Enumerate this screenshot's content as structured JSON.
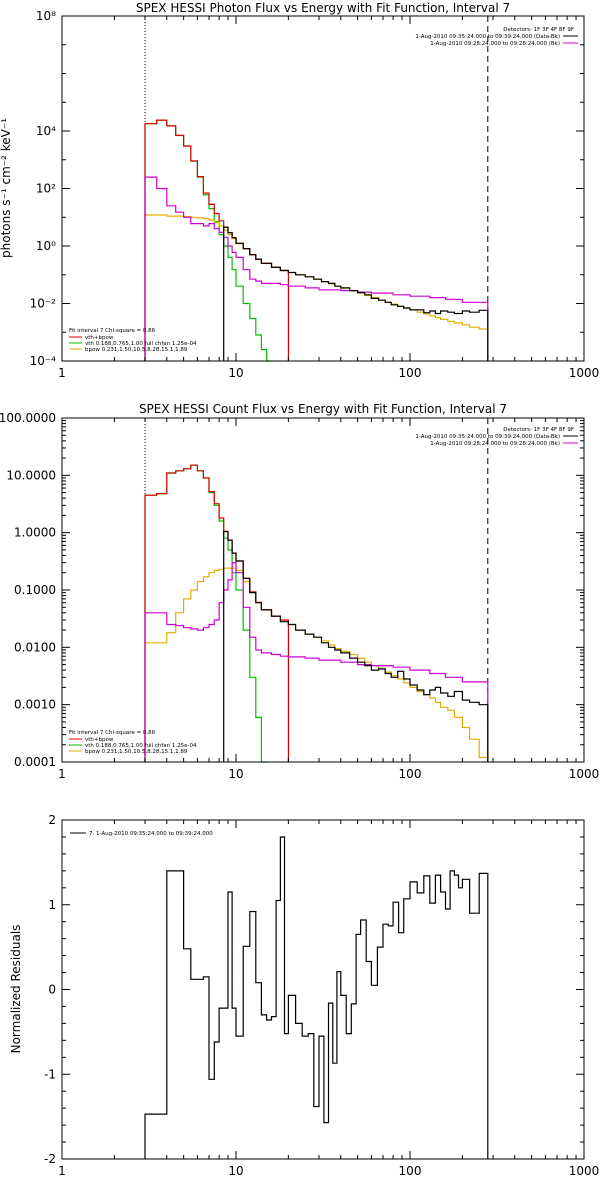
{
  "colors": {
    "total": "#000000",
    "sum": "#e00000",
    "vth": "#00c000",
    "bpow": "#e0b000",
    "background": "#d000d0"
  },
  "chart_data": [
    {
      "type": "line",
      "title": "SPEX HESSI Photon Flux vs Energy with Fit Function, Interval 7",
      "xlabel": "",
      "ylabel": "photons s⁻¹ cm⁻² keV⁻¹",
      "xscale": "log",
      "yscale": "log",
      "xlim": [
        1,
        1000
      ],
      "ylim": [
        0.0001,
        100000000
      ],
      "xticks": [
        1,
        10,
        100,
        1000
      ],
      "xtick_labels": [
        "1",
        "10",
        "100",
        "1000"
      ],
      "yticks": [
        0.0001,
        0.01,
        1,
        100,
        10000,
        100000000
      ],
      "ytick_labels": [
        "10⁻⁴",
        "10⁻²",
        "10⁰",
        "10²",
        "10⁴",
        "10⁸"
      ],
      "vlines": [
        {
          "x": 3,
          "style": "dotted"
        },
        {
          "x": 280,
          "style": "dashed"
        }
      ],
      "legend_top": [
        "Detectors: 1F 3F 4F 8F 9F",
        "1-Aug-2010 09:35:24.000 to 09:39:24.000 (Data-Bk)",
        "1-Aug-2010 09:28:24.000 to 09:28:24.000 (Bk)"
      ],
      "legend_bottom": [
        "Fit interval 7   Chi-square = 0.86",
        "vth+bpow",
        "vth 0.188,0.765,1.00  full chfan 1.25e-04",
        "bpow 0.231,1.50,10.5,8.28,15.1,1.89"
      ],
      "series": [
        {
          "role": "vth",
          "edges": [
            3,
            3.5,
            4,
            4.5,
            5,
            5.5,
            6,
            6.5,
            7,
            7.5,
            8,
            8.5,
            9,
            9.5,
            10,
            11,
            12,
            13,
            14,
            15,
            16
          ],
          "values": [
            18000,
            24000,
            15000,
            7000,
            3000,
            900,
            250,
            60,
            20,
            7,
            2.5,
            1,
            0.4,
            0.15,
            0.04,
            0.01,
            0.003,
            0.0008,
            0.00025,
            0.0001
          ]
        },
        {
          "role": "bpow",
          "edges": [
            3,
            3.5,
            4,
            4.5,
            5,
            5.5,
            6,
            6.5,
            7,
            7.5,
            8,
            8.5,
            9,
            9.5,
            10,
            11,
            12,
            13,
            14,
            16,
            18,
            20,
            22,
            25,
            28,
            31,
            34,
            37,
            40,
            45,
            50,
            55,
            60,
            66,
            72,
            78,
            85,
            92,
            100,
            110,
            120,
            130,
            140,
            150,
            165,
            180,
            200,
            220,
            250,
            280
          ],
          "values": [
            12,
            12,
            11,
            11,
            10.5,
            10,
            9.5,
            9,
            8,
            6.5,
            5,
            3.5,
            2.5,
            1.8,
            1.2,
            0.8,
            0.5,
            0.35,
            0.25,
            0.18,
            0.14,
            0.12,
            0.1,
            0.085,
            0.07,
            0.058,
            0.048,
            0.04,
            0.034,
            0.028,
            0.023,
            0.019,
            0.016,
            0.013,
            0.011,
            0.0095,
            0.008,
            0.007,
            0.006,
            0.005,
            0.0043,
            0.0037,
            0.0032,
            0.0028,
            0.0024,
            0.0021,
            0.0018,
            0.0015,
            0.0013
          ]
        },
        {
          "role": "sum",
          "edges": [
            3,
            3.5,
            4,
            4.5,
            5,
            5.5,
            6,
            6.5,
            7,
            7.5,
            8,
            8.5,
            9,
            9.5,
            10,
            11,
            12,
            13,
            14,
            16,
            18,
            20
          ],
          "values": [
            18012,
            24012,
            15011,
            7011,
            3010,
            910,
            260,
            69,
            28,
            13.5,
            7.5,
            4.5,
            2.9,
            1.95,
            1.24,
            0.81,
            0.5,
            0.35,
            0.25,
            0.18,
            0.14
          ]
        },
        {
          "role": "background",
          "edges": [
            3,
            3.5,
            4,
            4.5,
            5,
            5.5,
            6,
            6.5,
            7,
            7.5,
            8,
            8.5,
            9,
            9.5,
            10,
            11,
            12,
            13,
            14,
            16,
            18,
            20,
            25,
            30,
            40,
            50,
            60,
            80,
            100,
            130,
            160,
            200,
            280
          ],
          "values": [
            250,
            100,
            25,
            15,
            10,
            6,
            6,
            5,
            6,
            4,
            3,
            2,
            1,
            0.6,
            0.4,
            0.15,
            0.07,
            0.06,
            0.05,
            0.05,
            0.045,
            0.04,
            0.035,
            0.03,
            0.028,
            0.025,
            0.023,
            0.02,
            0.018,
            0.016,
            0.014,
            0.011
          ]
        },
        {
          "role": "total",
          "edges": [
            8.5,
            9,
            9.5,
            10,
            11,
            12,
            13,
            14,
            16,
            18,
            20,
            22,
            25,
            28,
            31,
            34,
            37,
            40,
            45,
            50,
            55,
            60,
            66,
            72,
            78,
            85,
            92,
            100,
            110,
            120,
            130,
            140,
            150,
            165,
            180,
            200,
            220,
            250,
            280
          ],
          "values": [
            4.5,
            2.9,
            1.95,
            1.24,
            0.81,
            0.5,
            0.35,
            0.25,
            0.18,
            0.14,
            0.12,
            0.1,
            0.085,
            0.07,
            0.058,
            0.05,
            0.04,
            0.035,
            0.028,
            0.024,
            0.02,
            0.015,
            0.013,
            0.011,
            0.009,
            0.008,
            0.007,
            0.006,
            0.006,
            0.0048,
            0.0055,
            0.0045,
            0.0055,
            0.005,
            0.0045,
            0.0055,
            0.005,
            0.0058
          ]
        }
      ]
    },
    {
      "type": "line",
      "title": "SPEX HESSI Count Flux vs Energy with Fit Function, Interval 7",
      "xlabel": "",
      "ylabel": "",
      "xscale": "log",
      "yscale": "log",
      "xlim": [
        1,
        1000
      ],
      "ylim": [
        0.0001,
        100
      ],
      "xticks": [
        1,
        10,
        100,
        1000
      ],
      "xtick_labels": [
        "1",
        "10",
        "100",
        "1000"
      ],
      "yticks": [
        0.0001,
        0.001,
        0.01,
        0.1,
        1,
        10,
        100
      ],
      "ytick_labels": [
        "0.0001",
        "0.0010",
        "0.0100",
        "0.1000",
        "1.0000",
        "10.0000",
        "100.0000"
      ],
      "vlines": [
        {
          "x": 3,
          "style": "dotted"
        },
        {
          "x": 280,
          "style": "dashed"
        }
      ],
      "legend_top": [
        "Detectors: 1F 3F 4F 8F 9F",
        "1-Aug-2010 09:35:24.000 to 09:39:24.000 (Data-Bk)",
        "1-Aug-2010 09:28:24.000 to 09:28:24.000 (Bk)"
      ],
      "legend_bottom": [
        "Fit interval 7   Chi-square = 0.86",
        "vth+bpow",
        "vth 0.188,0.765,1.00  full chfan 1.25e-04",
        "bpow 0.231,1.50,10.5,8.28,15.1,1.89"
      ],
      "series": [
        {
          "role": "vth",
          "edges": [
            3,
            3.5,
            4,
            4.5,
            5,
            5.5,
            6,
            6.5,
            7,
            7.5,
            8,
            8.5,
            9,
            9.5,
            10,
            11,
            12,
            13,
            14,
            15
          ],
          "values": [
            4.5,
            4.8,
            11,
            12,
            13,
            15,
            12,
            9,
            5,
            3,
            1.6,
            0.8,
            0.5,
            0.2,
            0.1,
            0.02,
            0.003,
            0.0006,
            0.0001
          ]
        },
        {
          "role": "bpow",
          "edges": [
            3,
            3.5,
            4,
            4.5,
            5,
            5.5,
            6,
            6.5,
            7,
            7.5,
            8,
            8.5,
            9,
            9.5,
            10,
            11,
            12,
            13,
            14,
            16,
            18,
            20,
            22,
            25,
            28,
            31,
            34,
            37,
            40,
            45,
            50,
            55,
            60,
            66,
            72,
            78,
            85,
            92,
            100,
            110,
            120,
            130,
            140,
            150,
            165,
            180,
            200,
            220,
            250,
            280
          ],
          "values": [
            0.012,
            0.012,
            0.018,
            0.04,
            0.07,
            0.1,
            0.14,
            0.17,
            0.2,
            0.22,
            0.23,
            0.24,
            0.24,
            0.24,
            0.22,
            0.14,
            0.09,
            0.06,
            0.045,
            0.035,
            0.03,
            0.025,
            0.02,
            0.017,
            0.015,
            0.013,
            0.011,
            0.0095,
            0.0085,
            0.0075,
            0.0065,
            0.0055,
            0.0048,
            0.0042,
            0.0037,
            0.0032,
            0.0028,
            0.0024,
            0.002,
            0.0017,
            0.0015,
            0.0013,
            0.0011,
            0.0009,
            0.0008,
            0.0006,
            0.0004,
            0.00025,
            0.00012
          ]
        },
        {
          "role": "sum",
          "edges": [
            3,
            3.5,
            4,
            4.5,
            5,
            5.5,
            6,
            6.5,
            7,
            7.5,
            8,
            8.5,
            9,
            9.5,
            10,
            11,
            12,
            13,
            14,
            16,
            18,
            20
          ],
          "values": [
            4.5,
            4.8,
            11,
            12,
            13,
            15,
            12,
            9,
            5.2,
            3.2,
            1.8,
            1.05,
            0.74,
            0.44,
            0.32,
            0.16,
            0.093,
            0.061,
            0.045,
            0.035,
            0.03
          ]
        },
        {
          "role": "background",
          "edges": [
            3,
            3.5,
            4,
            4.5,
            5,
            5.5,
            6,
            6.5,
            7,
            7.5,
            8,
            8.5,
            9,
            9.5,
            10,
            11,
            12,
            13,
            14,
            16,
            18,
            20,
            25,
            30,
            40,
            50,
            60,
            80,
            100,
            130,
            160,
            200,
            280
          ],
          "values": [
            0.04,
            0.04,
            0.025,
            0.024,
            0.022,
            0.021,
            0.02,
            0.022,
            0.025,
            0.03,
            0.06,
            0.1,
            0.15,
            0.3,
            0.2,
            0.05,
            0.015,
            0.009,
            0.008,
            0.0075,
            0.007,
            0.0068,
            0.0065,
            0.006,
            0.0055,
            0.005,
            0.0048,
            0.0045,
            0.004,
            0.0035,
            0.003,
            0.0025
          ]
        },
        {
          "role": "total",
          "edges": [
            8.5,
            9,
            9.5,
            10,
            11,
            12,
            13,
            14,
            16,
            18,
            20,
            22,
            25,
            28,
            31,
            34,
            37,
            40,
            45,
            50,
            55,
            60,
            66,
            72,
            78,
            85,
            92,
            100,
            110,
            120,
            130,
            140,
            150,
            165,
            180,
            200,
            220,
            250,
            280
          ],
          "values": [
            1.05,
            0.74,
            0.44,
            0.32,
            0.16,
            0.09,
            0.06,
            0.045,
            0.035,
            0.028,
            0.025,
            0.02,
            0.017,
            0.015,
            0.012,
            0.01,
            0.009,
            0.008,
            0.0065,
            0.0055,
            0.0048,
            0.004,
            0.0042,
            0.0035,
            0.003,
            0.0038,
            0.0028,
            0.0022,
            0.0018,
            0.0015,
            0.0018,
            0.002,
            0.0016,
            0.0014,
            0.0017,
            0.0012,
            0.0011,
            0.001
          ]
        }
      ]
    },
    {
      "type": "line",
      "title": "",
      "xlabel": "",
      "ylabel": "Normalized Residuals",
      "xscale": "log",
      "yscale": "linear",
      "xlim": [
        1,
        1000
      ],
      "ylim": [
        -2,
        2
      ],
      "xticks": [
        1,
        10,
        100,
        1000
      ],
      "xtick_labels": [
        "1",
        "10",
        "100",
        "1000"
      ],
      "yticks": [
        -2,
        -1,
        0,
        1,
        2
      ],
      "ytick_labels": [
        "-2",
        "-1",
        "0",
        "1",
        "2"
      ],
      "legend": "7.  1-Aug-2010 09:35:24.000 to 09:39:24.000",
      "series": [
        {
          "role": "total",
          "edges": [
            3,
            4,
            4.5,
            5,
            5.5,
            6,
            6.5,
            7,
            7.5,
            8,
            8.5,
            9,
            9.5,
            10,
            11,
            12,
            13,
            14,
            15,
            16,
            17,
            18,
            19,
            20,
            22,
            24,
            26,
            28,
            30,
            32,
            34,
            36,
            38,
            40,
            43,
            46,
            49,
            52,
            56,
            60,
            65,
            70,
            75,
            80,
            86,
            92,
            100,
            110,
            120,
            130,
            140,
            150,
            160,
            170,
            180,
            190,
            200,
            220,
            250,
            280
          ],
          "values": [
            -1.47,
            1.4,
            1.4,
            0.48,
            0.12,
            0.12,
            0.15,
            -1.06,
            -0.62,
            -0.22,
            -0.22,
            1.15,
            -0.22,
            -0.55,
            0.51,
            0.92,
            0.08,
            -0.3,
            -0.36,
            -0.32,
            1.05,
            1.8,
            -0.52,
            -0.07,
            -0.4,
            -0.55,
            -0.52,
            -1.38,
            -0.55,
            -1.57,
            -0.16,
            -0.87,
            0.21,
            -0.07,
            -0.52,
            -0.17,
            0.65,
            0.82,
            0.33,
            0.05,
            0.5,
            0.77,
            0.75,
            1.03,
            0.67,
            1.07,
            1.27,
            1.14,
            1.34,
            1.02,
            1.35,
            1.15,
            0.95,
            1.4,
            1.35,
            1.2,
            1.3,
            0.9,
            1.37
          ]
        }
      ]
    }
  ]
}
